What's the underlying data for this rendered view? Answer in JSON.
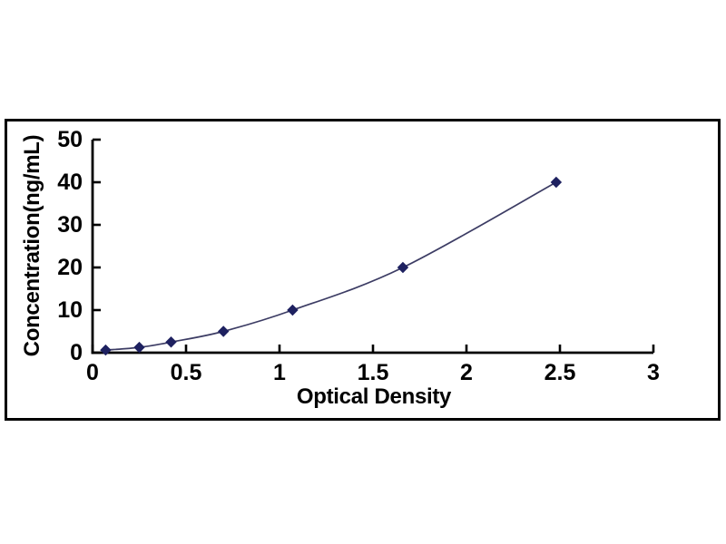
{
  "figure": {
    "background_color": "#ffffff",
    "frame_border_color": "#000000"
  },
  "chart_data": {
    "type": "line",
    "subtype": "smooth-scatter-standard-curve",
    "title": "",
    "xlabel": "Optical Density",
    "ylabel": "Concentration(ng/mL)",
    "x": [
      0.07,
      0.25,
      0.42,
      0.7,
      1.07,
      1.66,
      2.48
    ],
    "y": [
      0.625,
      1.25,
      2.5,
      5,
      10,
      20,
      40
    ],
    "xlim": [
      0,
      3
    ],
    "ylim": [
      0,
      50
    ],
    "x_tick_values": [
      0,
      0.5,
      1,
      1.5,
      2,
      2.5,
      3
    ],
    "x_tick_labels": [
      "0",
      "0.5",
      "1",
      "1.5",
      "2",
      "2.5",
      "3"
    ],
    "y_tick_values": [
      0,
      10,
      20,
      30,
      40,
      50
    ],
    "y_tick_labels": [
      "0",
      "10",
      "20",
      "30",
      "40",
      "50"
    ],
    "grid": false,
    "legend": "none",
    "marker_shape": "diamond",
    "marker_color": "#1e2160",
    "line_color": "#3c3c64",
    "axis_color": "#000000"
  }
}
